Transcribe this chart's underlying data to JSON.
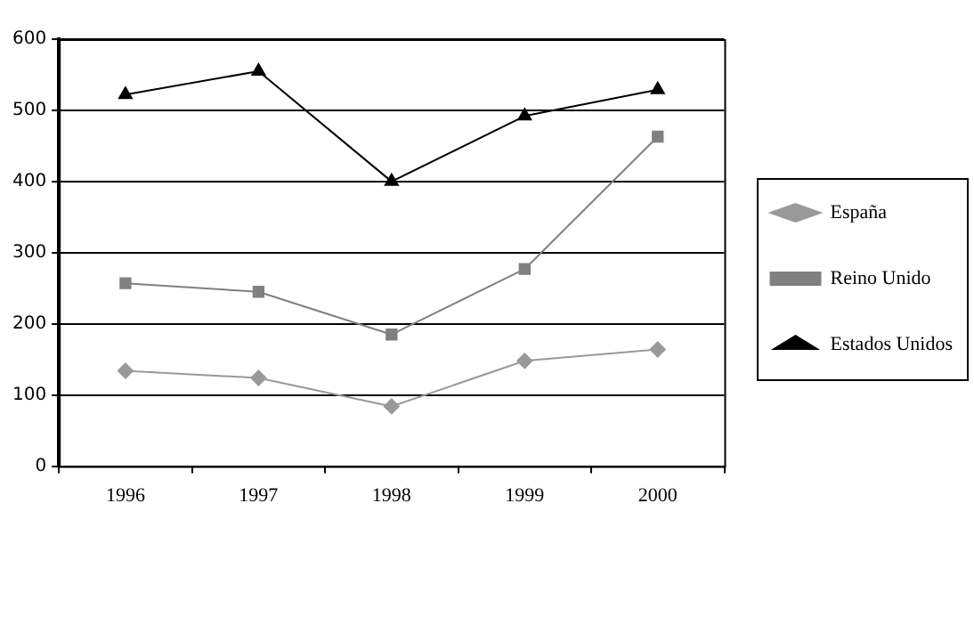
{
  "chart_data": {
    "type": "line",
    "categories": [
      "1996",
      "1997",
      "1998",
      "1999",
      "2000"
    ],
    "series": [
      {
        "name": "España",
        "color": "#999999",
        "marker": "diamond",
        "values": [
          134,
          124,
          84,
          148,
          164
        ]
      },
      {
        "name": "Reino Unido",
        "color": "#808080",
        "marker": "square",
        "values": [
          257,
          245,
          185,
          277,
          463
        ]
      },
      {
        "name": "Estados Unidos",
        "color": "#000000",
        "marker": "triangle",
        "values": [
          522,
          555,
          400,
          492,
          529
        ]
      }
    ],
    "ylim": [
      0,
      600
    ],
    "yticks": [
      0,
      100,
      200,
      300,
      400,
      500,
      600
    ],
    "grid": "y",
    "legend": "right",
    "line_style": "solid"
  }
}
